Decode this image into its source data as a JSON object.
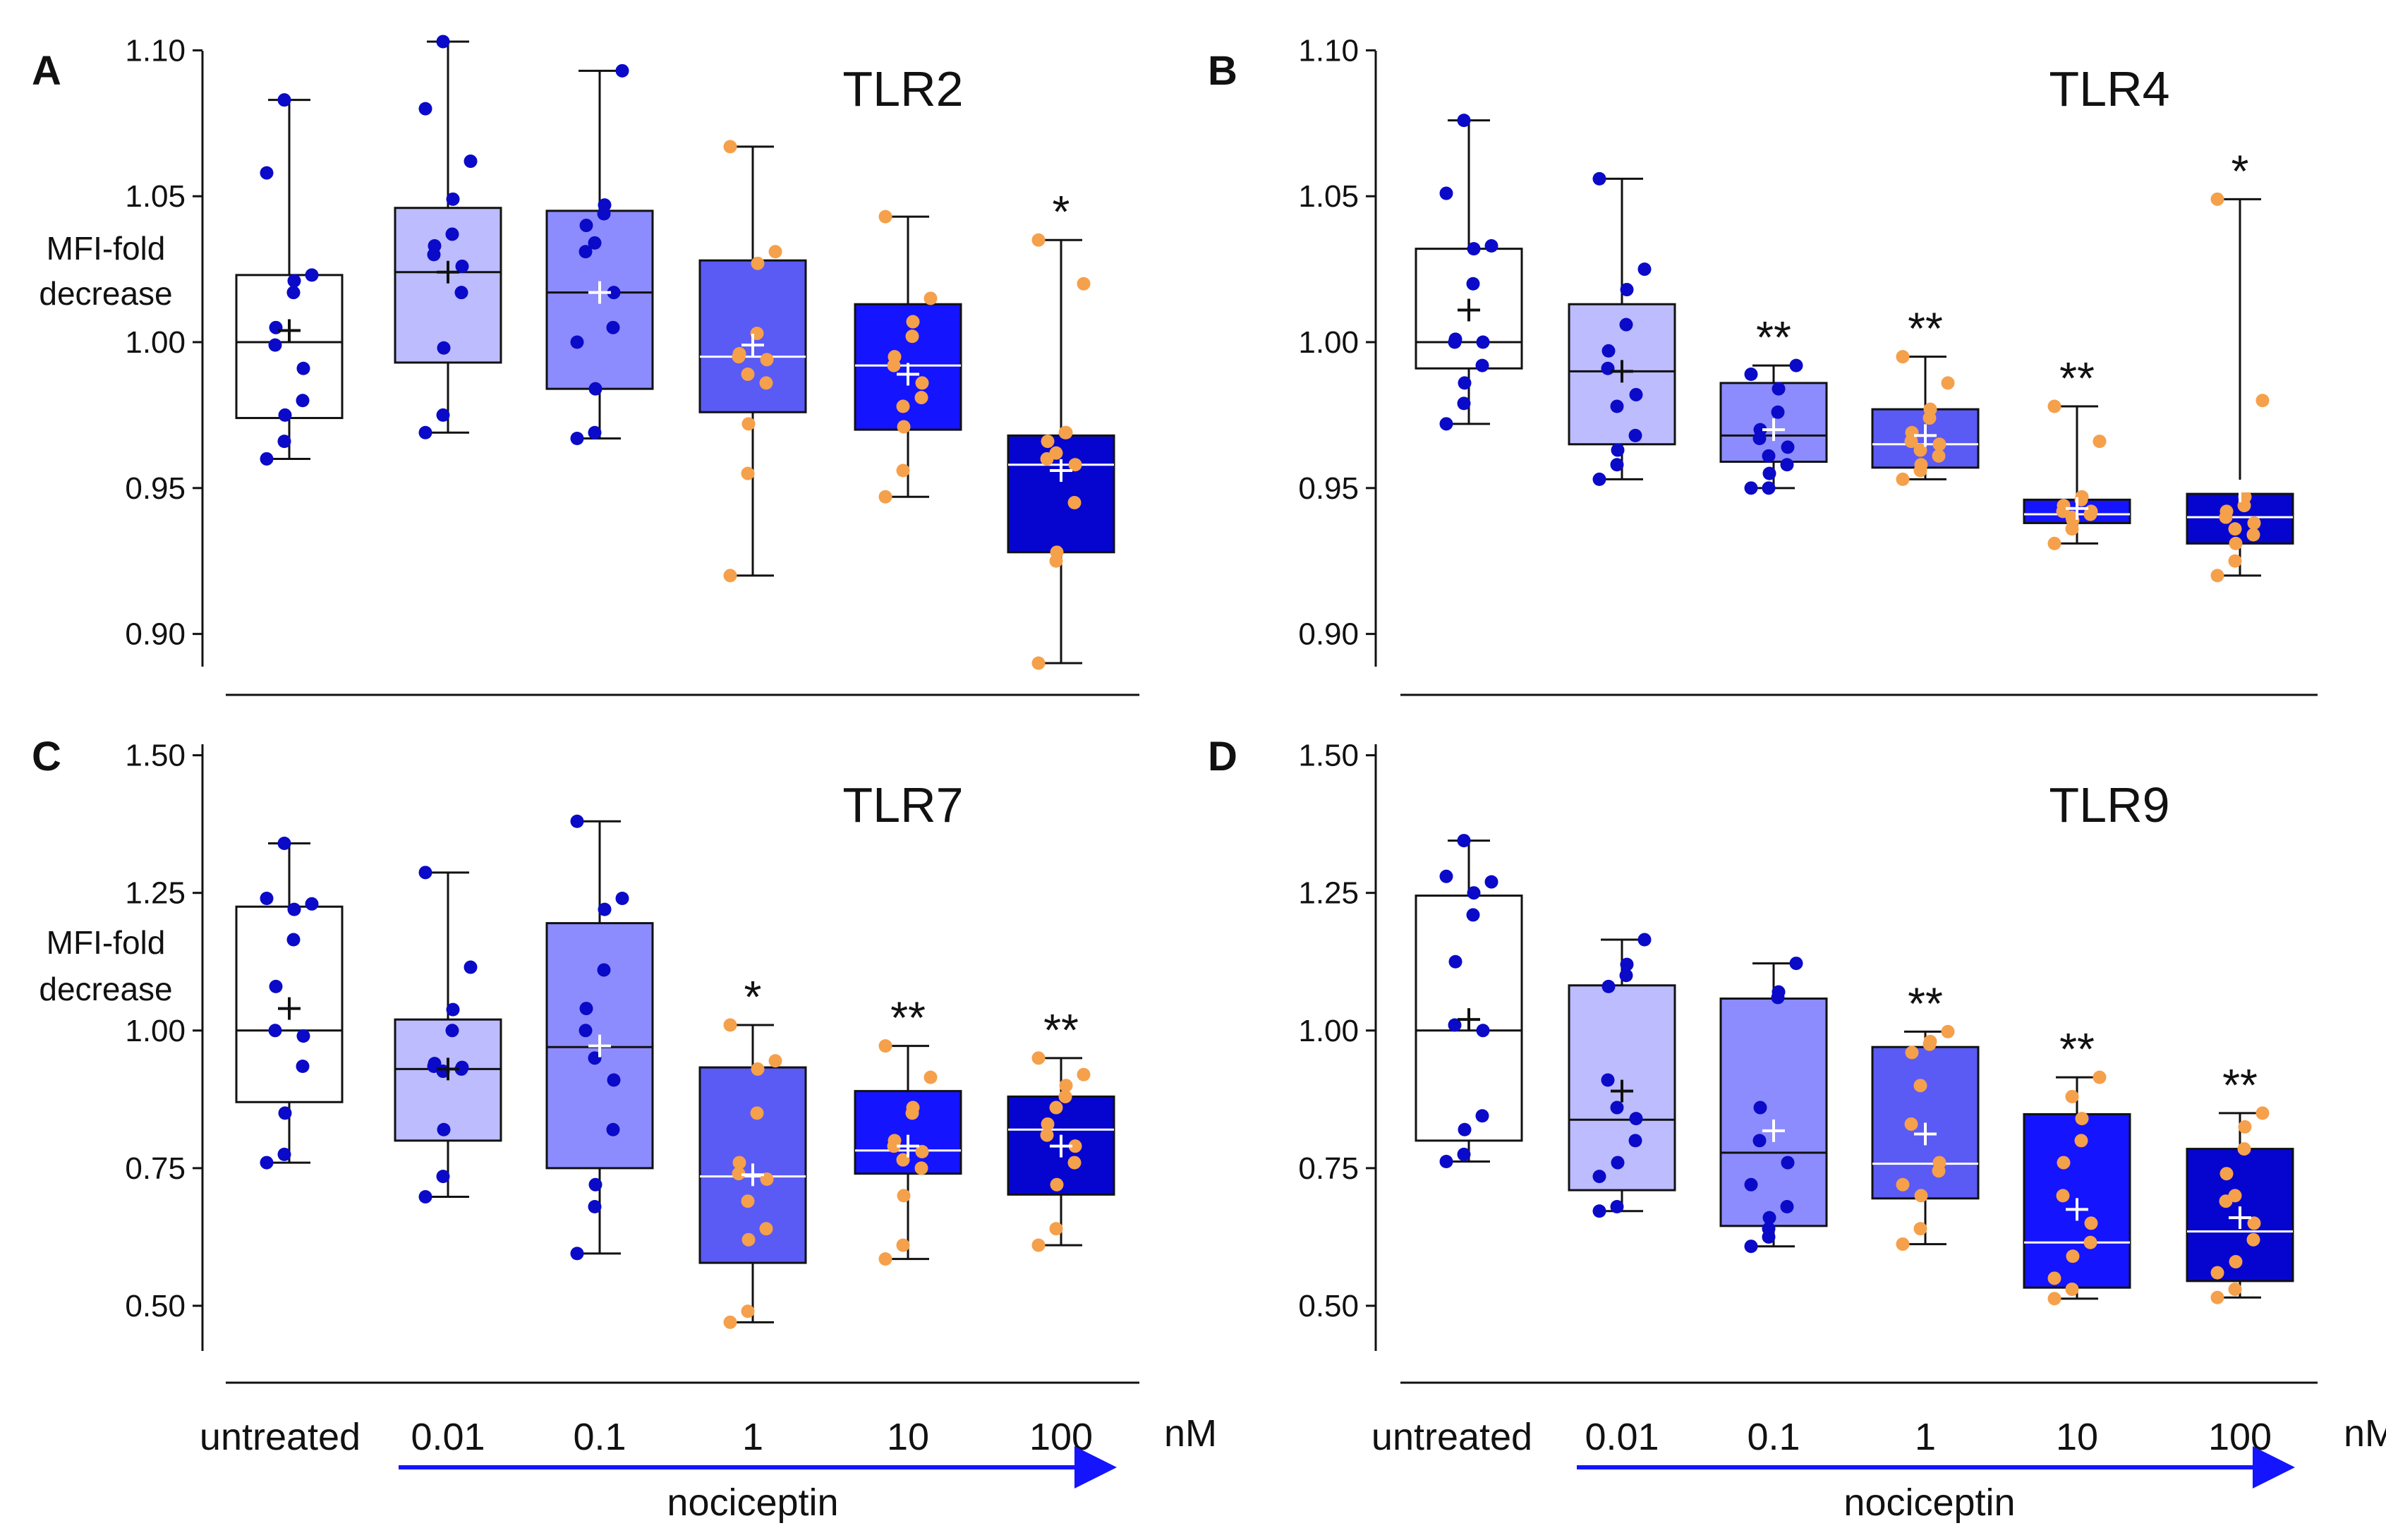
{
  "figure": {
    "categories": [
      "untreated",
      "0.01",
      "0.1",
      "1",
      "10",
      "100"
    ],
    "unit": "nM",
    "x_title": "nociceptin",
    "arrow_color": "#1414ff",
    "box_colors": [
      "#ffffff",
      "#bcbcff",
      "#8c8cff",
      "#5a5af5",
      "#1414ff",
      "#0505cf"
    ],
    "mean_marker_colors": [
      "#111111",
      "#111111",
      "#ffffff",
      "#ffffff",
      "#ffffff",
      "#ffffff"
    ],
    "median_line_colors": [
      "#111111",
      "#111111",
      "#111111",
      "#ffffff",
      "#ffffff",
      "#ffffff"
    ],
    "dot_colors": {
      "blue": "#0a0ac8",
      "orange": "#f5a04b"
    }
  },
  "chart_data": [
    {
      "type": "box",
      "panel": "A",
      "title": "TLR2",
      "ylabel": "MFI-fold decrease",
      "ylim": [
        0.89,
        1.11
      ],
      "yticks": [
        0.9,
        0.95,
        1.0,
        1.05,
        1.1
      ],
      "ytick_labels": [
        "0.90",
        "0.95",
        "1.00",
        "1.05",
        "1.10"
      ],
      "significance": [
        "",
        "",
        "",
        "",
        "",
        "*"
      ],
      "groups": [
        {
          "q1": 0.974,
          "median": 1.0,
          "q3": 1.023,
          "min": 0.96,
          "max": 1.083,
          "mean": 1.004,
          "points": [
            0.96,
            0.966,
            0.975,
            0.98,
            0.991,
            0.999,
            1.005,
            1.017,
            1.021,
            1.023,
            1.058,
            1.083
          ]
        },
        {
          "q1": 0.993,
          "median": 1.024,
          "q3": 1.046,
          "min": 0.969,
          "max": 1.103,
          "mean": 1.024,
          "points": [
            0.969,
            0.975,
            0.998,
            1.017,
            1.026,
            1.03,
            1.033,
            1.037,
            1.049,
            1.062,
            1.08,
            1.103
          ]
        },
        {
          "q1": 0.984,
          "median": 1.017,
          "q3": 1.045,
          "min": 0.967,
          "max": 1.093,
          "mean": 1.017,
          "points": [
            0.967,
            0.969,
            0.984,
            1.005,
            1.017,
            1.031,
            1.04,
            1.044,
            1.047,
            1.093,
            1.0,
            1.034
          ]
        },
        {
          "q1": 0.976,
          "median": 0.995,
          "q3": 1.028,
          "min": 0.92,
          "max": 1.067,
          "mean": 0.999,
          "points": [
            0.92,
            0.955,
            0.972,
            0.986,
            0.994,
            0.995,
            0.996,
            1.003,
            1.027,
            1.031,
            1.067,
            0.989
          ]
        },
        {
          "q1": 0.97,
          "median": 0.992,
          "q3": 1.013,
          "min": 0.947,
          "max": 1.043,
          "mean": 0.989,
          "points": [
            0.947,
            0.956,
            0.971,
            0.981,
            0.986,
            0.992,
            0.995,
            1.002,
            1.007,
            1.015,
            1.043,
            0.978
          ]
        },
        {
          "q1": 0.928,
          "median": 0.958,
          "q3": 0.968,
          "min": 0.89,
          "max": 1.035,
          "mean": 0.956,
          "points": [
            0.89,
            0.925,
            0.928,
            0.945,
            0.958,
            0.96,
            0.966,
            0.969,
            0.969,
            1.02,
            1.035,
            0.962
          ]
        }
      ]
    },
    {
      "type": "box",
      "panel": "B",
      "title": "TLR4",
      "ylabel": "",
      "ylim": [
        0.89,
        1.11
      ],
      "yticks": [
        0.9,
        0.95,
        1.0,
        1.05,
        1.1
      ],
      "ytick_labels": [
        "0.90",
        "0.95",
        "1.00",
        "1.05",
        "1.10"
      ],
      "significance": [
        "",
        "",
        "**",
        "**",
        "**",
        "*"
      ],
      "groups": [
        {
          "q1": 0.991,
          "median": 1.0,
          "q3": 1.032,
          "min": 0.972,
          "max": 1.076,
          "mean": 1.011,
          "points": [
            0.972,
            0.979,
            0.986,
            0.992,
            1.0,
            1.0,
            1.001,
            1.02,
            1.032,
            1.033,
            1.051,
            1.076
          ]
        },
        {
          "q1": 0.965,
          "median": 0.99,
          "q3": 1.013,
          "min": 0.953,
          "max": 1.056,
          "mean": 0.99,
          "points": [
            0.953,
            0.958,
            0.963,
            0.968,
            0.982,
            0.991,
            0.997,
            1.006,
            1.018,
            1.025,
            1.056,
            0.978
          ]
        },
        {
          "q1": 0.959,
          "median": 0.968,
          "q3": 0.986,
          "min": 0.95,
          "max": 0.992,
          "mean": 0.97,
          "points": [
            0.95,
            0.95,
            0.955,
            0.958,
            0.964,
            0.967,
            0.97,
            0.976,
            0.984,
            0.992,
            0.989,
            0.961
          ]
        },
        {
          "q1": 0.957,
          "median": 0.965,
          "q3": 0.977,
          "min": 0.953,
          "max": 0.995,
          "mean": 0.968,
          "points": [
            0.953,
            0.956,
            0.958,
            0.961,
            0.965,
            0.966,
            0.969,
            0.974,
            0.977,
            0.986,
            0.995,
            0.963
          ]
        },
        {
          "q1": 0.938,
          "median": 0.941,
          "q3": 0.946,
          "min": 0.931,
          "max": 0.978,
          "mean": 0.943,
          "points": [
            0.931,
            0.936,
            0.939,
            0.941,
            0.942,
            0.942,
            0.944,
            0.946,
            0.947,
            0.966,
            0.978,
            0.94
          ]
        },
        {
          "q1": 0.931,
          "median": 0.94,
          "q3": 0.948,
          "min": 0.92,
          "max": 1.049,
          "mean": 0.949,
          "points": [
            0.92,
            0.925,
            0.931,
            0.934,
            0.938,
            0.94,
            0.942,
            0.944,
            0.947,
            0.98,
            1.049,
            0.936
          ]
        }
      ]
    },
    {
      "type": "box",
      "panel": "C",
      "title": "TLR7",
      "ylabel": "MFI-fold decrease",
      "ylim": [
        0.45,
        1.52
      ],
      "yticks": [
        0.5,
        0.75,
        1.0,
        1.25,
        1.5
      ],
      "ytick_labels": [
        "0.50",
        "0.75",
        "1.00",
        "1.25",
        "1.50"
      ],
      "significance": [
        "",
        "",
        "",
        "*",
        "**",
        "**"
      ],
      "groups": [
        {
          "q1": 0.87,
          "median": 1.0,
          "q3": 1.225,
          "min": 0.76,
          "max": 1.34,
          "mean": 1.04,
          "points": [
            0.76,
            0.775,
            0.85,
            0.935,
            0.99,
            1.0,
            1.08,
            1.165,
            1.22,
            1.23,
            1.24,
            1.34
          ]
        },
        {
          "q1": 0.8,
          "median": 0.93,
          "q3": 1.02,
          "min": 0.698,
          "max": 1.287,
          "mean": 0.93,
          "points": [
            0.698,
            0.735,
            0.82,
            0.93,
            0.933,
            0.935,
            0.94,
            1.0,
            1.038,
            1.115,
            1.287,
            0.926
          ]
        },
        {
          "q1": 0.75,
          "median": 0.97,
          "q3": 1.195,
          "min": 0.595,
          "max": 1.38,
          "mean": 0.972,
          "points": [
            0.595,
            0.68,
            0.72,
            0.82,
            0.91,
            1.0,
            1.04,
            1.11,
            1.22,
            1.24,
            1.38,
            0.95
          ]
        },
        {
          "q1": 0.578,
          "median": 0.735,
          "q3": 0.933,
          "min": 0.47,
          "max": 1.01,
          "mean": 0.738,
          "points": [
            0.47,
            0.49,
            0.62,
            0.64,
            0.73,
            0.74,
            0.76,
            0.85,
            0.93,
            0.945,
            1.01,
            0.69
          ]
        },
        {
          "q1": 0.74,
          "median": 0.782,
          "q3": 0.89,
          "min": 0.585,
          "max": 0.972,
          "mean": 0.79,
          "points": [
            0.585,
            0.61,
            0.7,
            0.75,
            0.78,
            0.79,
            0.8,
            0.85,
            0.86,
            0.915,
            0.972,
            0.765
          ]
        },
        {
          "q1": 0.702,
          "median": 0.82,
          "q3": 0.88,
          "min": 0.61,
          "max": 0.95,
          "mean": 0.79,
          "points": [
            0.61,
            0.64,
            0.72,
            0.76,
            0.79,
            0.81,
            0.83,
            0.88,
            0.9,
            0.92,
            0.95,
            0.86
          ]
        }
      ]
    },
    {
      "type": "box",
      "panel": "D",
      "title": "TLR9",
      "ylabel": "",
      "ylim": [
        0.45,
        1.52
      ],
      "yticks": [
        0.5,
        0.75,
        1.0,
        1.25,
        1.5
      ],
      "ytick_labels": [
        "0.50",
        "0.75",
        "1.00",
        "1.25",
        "1.50"
      ],
      "significance": [
        "",
        "",
        "",
        "**",
        "**",
        "**"
      ],
      "groups": [
        {
          "q1": 0.8,
          "median": 1.0,
          "q3": 1.245,
          "min": 0.762,
          "max": 1.345,
          "mean": 1.02,
          "points": [
            0.762,
            0.775,
            0.82,
            0.845,
            1.0,
            1.01,
            1.125,
            1.21,
            1.25,
            1.27,
            1.28,
            1.345
          ]
        },
        {
          "q1": 0.71,
          "median": 0.838,
          "q3": 1.082,
          "min": 0.672,
          "max": 1.165,
          "mean": 0.89,
          "points": [
            0.672,
            0.68,
            0.76,
            0.8,
            0.84,
            0.91,
            1.08,
            1.1,
            1.12,
            1.165,
            0.735,
            0.86
          ]
        },
        {
          "q1": 0.645,
          "median": 0.778,
          "q3": 1.058,
          "min": 0.608,
          "max": 1.122,
          "mean": 0.818,
          "points": [
            0.608,
            0.625,
            0.66,
            0.68,
            0.76,
            0.8,
            0.86,
            1.06,
            1.07,
            1.122,
            0.72,
            0.64
          ]
        },
        {
          "q1": 0.695,
          "median": 0.758,
          "q3": 0.97,
          "min": 0.612,
          "max": 0.998,
          "mean": 0.812,
          "points": [
            0.612,
            0.64,
            0.7,
            0.745,
            0.76,
            0.83,
            0.96,
            0.975,
            0.98,
            0.998,
            0.72,
            0.9
          ]
        },
        {
          "q1": 0.533,
          "median": 0.615,
          "q3": 0.848,
          "min": 0.513,
          "max": 0.915,
          "mean": 0.675,
          "points": [
            0.513,
            0.53,
            0.59,
            0.615,
            0.65,
            0.7,
            0.76,
            0.8,
            0.84,
            0.915,
            0.55,
            0.88
          ]
        },
        {
          "q1": 0.545,
          "median": 0.635,
          "q3": 0.785,
          "min": 0.515,
          "max": 0.85,
          "mean": 0.66,
          "points": [
            0.515,
            0.53,
            0.58,
            0.62,
            0.65,
            0.69,
            0.74,
            0.785,
            0.825,
            0.85,
            0.56,
            0.7
          ]
        }
      ]
    }
  ]
}
